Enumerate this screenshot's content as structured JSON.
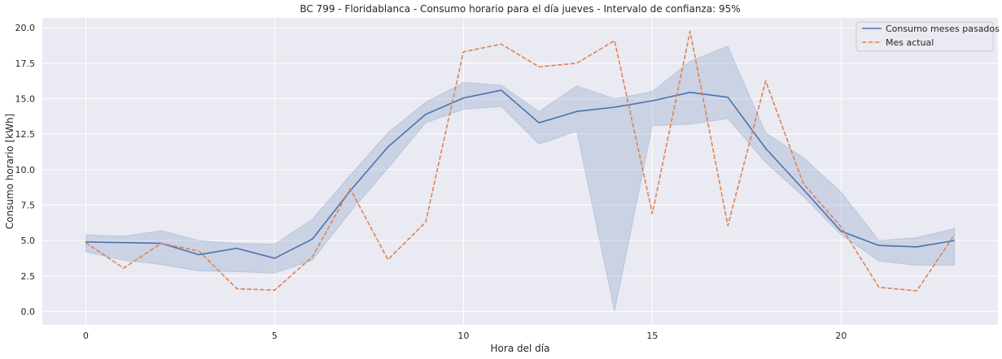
{
  "chart_data": {
    "type": "line",
    "title": "BC 799 - Floridablanca - Consumo horario para el día jueves - Intervalo de confianza: 95%",
    "xlabel": "Hora del día",
    "ylabel": "Consumo horario [kWh]",
    "xlim": [
      -1.15,
      24.15
    ],
    "ylim": [
      -0.95,
      20.7
    ],
    "xticks": [
      0,
      5,
      10,
      15,
      20
    ],
    "yticks": [
      0.0,
      2.5,
      5.0,
      7.5,
      10.0,
      12.5,
      15.0,
      17.5,
      20.0
    ],
    "ytick_labels": [
      "0.0",
      "2.5",
      "5.0",
      "7.5",
      "10.0",
      "12.5",
      "15.0",
      "17.5",
      "20.0"
    ],
    "grid": true,
    "legend_position": "top-right",
    "x": [
      0,
      1,
      2,
      3,
      4,
      5,
      6,
      7,
      8,
      9,
      10,
      11,
      12,
      13,
      14,
      15,
      16,
      17,
      18,
      19,
      20,
      21,
      22,
      23
    ],
    "series": [
      {
        "name": "Consumo meses pasados",
        "style": "solid",
        "color": "#4c72b0",
        "values": [
          4.9,
          4.85,
          4.8,
          4.0,
          4.45,
          3.75,
          5.1,
          8.5,
          11.6,
          13.9,
          15.05,
          15.6,
          13.3,
          14.1,
          14.4,
          14.85,
          15.45,
          15.1,
          11.5,
          8.6,
          5.65,
          4.65,
          4.55,
          5.0
        ],
        "ci_lower": [
          4.2,
          3.6,
          3.3,
          2.85,
          2.8,
          2.7,
          3.6,
          7.0,
          10.1,
          13.3,
          14.25,
          14.45,
          11.8,
          12.7,
          0.0,
          13.1,
          13.2,
          13.6,
          10.5,
          8.1,
          5.4,
          3.55,
          3.25,
          3.25
        ],
        "ci_upper": [
          5.4,
          5.3,
          5.7,
          5.0,
          4.8,
          4.75,
          6.5,
          9.6,
          12.6,
          14.75,
          16.15,
          15.95,
          14.1,
          15.9,
          15.0,
          15.5,
          17.65,
          18.7,
          12.6,
          10.85,
          8.4,
          5.0,
          5.2,
          5.85
        ]
      },
      {
        "name": "Mes actual",
        "style": "dashed",
        "color": "#dd8452",
        "values": [
          4.85,
          3.05,
          4.8,
          4.25,
          1.6,
          1.5,
          3.85,
          8.65,
          3.65,
          6.3,
          18.3,
          18.85,
          17.25,
          17.5,
          19.1,
          6.9,
          19.75,
          6.05,
          16.25,
          9.0,
          5.95,
          1.7,
          1.45,
          5.4
        ]
      }
    ]
  }
}
